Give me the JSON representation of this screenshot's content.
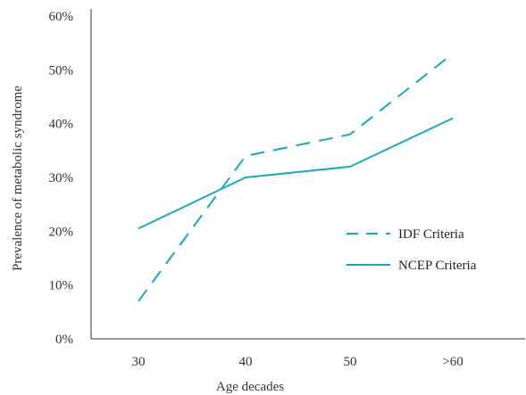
{
  "colors": {
    "series": "#1aa7c2",
    "axis": "#333333",
    "text": "#333333"
  },
  "chart_data": {
    "type": "line",
    "categories": [
      "30",
      "40",
      "50",
      ">60"
    ],
    "xlabel": "Age decades",
    "ylabel": "Prevalence of metabolic syndrome",
    "ylim": [
      0,
      60
    ],
    "yticks": [
      "0%",
      "10%",
      "20%",
      "30%",
      "40%",
      "50%",
      "60%"
    ],
    "grid": false,
    "legend_position": "right",
    "series": [
      {
        "name": "IDF Criteria",
        "style": "dashed",
        "values": [
          7,
          34,
          38,
          53
        ]
      },
      {
        "name": "NCEP Criteria",
        "style": "solid",
        "values": [
          20.5,
          30,
          32,
          41
        ]
      }
    ]
  }
}
